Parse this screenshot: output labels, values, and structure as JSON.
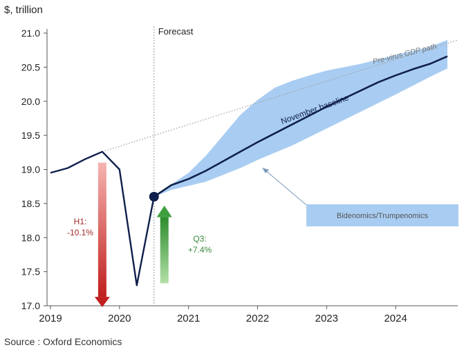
{
  "chart_data": {
    "type": "line",
    "unit_label": "$, trillion",
    "source": "Source : Oxford Economics",
    "ylim": [
      17.0,
      21.0
    ],
    "xlim": [
      2018.95,
      2024.9
    ],
    "y_ticks": [
      "17.0",
      "17.5",
      "18.0",
      "18.5",
      "19.0",
      "19.5",
      "20.0",
      "20.5",
      "21.0"
    ],
    "x_ticks": [
      "2019",
      "2020",
      "2021",
      "2022",
      "2023",
      "2024"
    ],
    "forecast_start": 2020.5,
    "forecast_label": "Forecast",
    "series": [
      {
        "name": "",
        "values": [
          [
            2019.0,
            18.95
          ],
          [
            2019.25,
            19.02
          ],
          [
            2019.5,
            19.15
          ],
          [
            2019.75,
            19.26
          ],
          [
            2020.0,
            19.0
          ],
          [
            2020.25,
            17.3
          ],
          [
            2020.5,
            18.6
          ]
        ]
      },
      {
        "name": "November baseline",
        "values": [
          [
            2020.5,
            18.6
          ],
          [
            2020.75,
            18.77
          ],
          [
            2021.0,
            18.86
          ],
          [
            2021.25,
            18.98
          ],
          [
            2021.5,
            19.12
          ],
          [
            2021.75,
            19.26
          ],
          [
            2022.0,
            19.4
          ],
          [
            2022.25,
            19.53
          ],
          [
            2022.5,
            19.66
          ],
          [
            2022.75,
            19.79
          ],
          [
            2023.0,
            19.92
          ],
          [
            2023.25,
            20.04
          ],
          [
            2023.5,
            20.16
          ],
          [
            2023.75,
            20.28
          ],
          [
            2024.0,
            20.38
          ],
          [
            2024.25,
            20.47
          ],
          [
            2024.5,
            20.55
          ],
          [
            2024.75,
            20.66
          ]
        ]
      },
      {
        "name": "Pre-virus GDP path",
        "values": [
          [
            2019.75,
            19.26
          ],
          [
            2024.9,
            20.9
          ]
        ]
      }
    ],
    "band": {
      "name": "Bidenomics/Trumpenomics",
      "upper": [
        [
          2020.5,
          18.6
        ],
        [
          2020.75,
          18.78
        ],
        [
          2021.0,
          18.95
        ],
        [
          2021.25,
          19.2
        ],
        [
          2021.5,
          19.5
        ],
        [
          2021.75,
          19.8
        ],
        [
          2022.0,
          20.02
        ],
        [
          2022.25,
          20.2
        ],
        [
          2022.5,
          20.3
        ],
        [
          2022.75,
          20.38
        ],
        [
          2023.0,
          20.45
        ],
        [
          2023.5,
          20.55
        ],
        [
          2024.0,
          20.68
        ],
        [
          2024.5,
          20.8
        ],
        [
          2024.75,
          20.9
        ]
      ],
      "lower": [
        [
          2020.5,
          18.6
        ],
        [
          2020.75,
          18.7
        ],
        [
          2021.0,
          18.76
        ],
        [
          2021.25,
          18.82
        ],
        [
          2021.5,
          18.92
        ],
        [
          2021.75,
          19.02
        ],
        [
          2022.0,
          19.14
        ],
        [
          2022.5,
          19.35
        ],
        [
          2023.0,
          19.6
        ],
        [
          2023.5,
          19.85
        ],
        [
          2024.0,
          20.1
        ],
        [
          2024.5,
          20.36
        ],
        [
          2024.75,
          20.48
        ]
      ]
    },
    "marker_point": [
      2020.5,
      18.6
    ],
    "annotations": [
      {
        "id": "h1",
        "text_line1": "H1:",
        "text_line2": "-10.1%",
        "color": "#a12a2a",
        "direction": "down"
      },
      {
        "id": "q3",
        "text_line1": "Q3:",
        "text_line2": "+7.4%",
        "color": "#3a8a3a",
        "direction": "up"
      }
    ],
    "colors": {
      "line": "#0f1f4b",
      "band": "#a9cdf2",
      "pre_virus": "#9a9a9a",
      "down_arrow": "#c0201f",
      "up_arrow": "#3f9f3f",
      "marker": "#0f1f4b"
    },
    "grid": false
  }
}
